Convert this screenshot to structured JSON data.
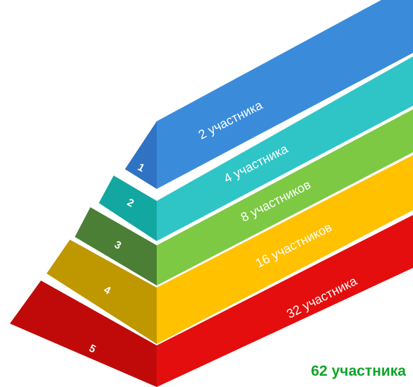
{
  "pyramid": {
    "levels": [
      {
        "number": "1",
        "label": "2 участника",
        "top_color": "#2f73c2",
        "front_color": "#3b8bdb"
      },
      {
        "number": "2",
        "label": "4 участника",
        "top_color": "#12a7a0",
        "front_color": "#2fc5c6"
      },
      {
        "number": "3",
        "label": "8 участников",
        "top_color": "#4b7f35",
        "front_color": "#7dc944"
      },
      {
        "number": "4",
        "label": "16 участников",
        "top_color": "#bf9800",
        "front_color": "#ffc100"
      },
      {
        "number": "5",
        "label": "32 участника",
        "top_color": "#c00a0a",
        "front_color": "#e40e0e"
      }
    ]
  },
  "total": {
    "label": "62 участника",
    "color": "#0fa42a"
  }
}
